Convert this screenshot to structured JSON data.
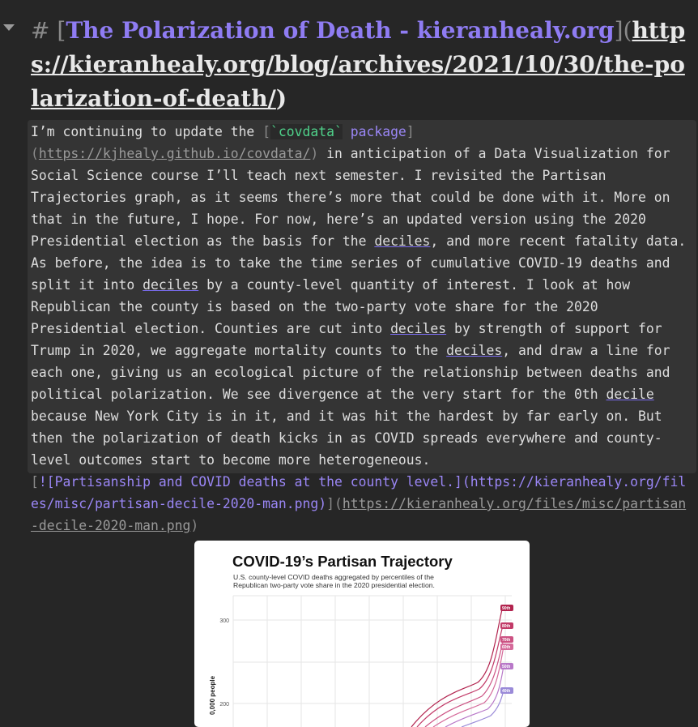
{
  "heading": {
    "segments": [
      {
        "kind": "marker",
        "text": "# "
      },
      {
        "kind": "syntax",
        "text": "["
      },
      {
        "kind": "link",
        "text": "The Polarization of Death - kieranhealy.org"
      },
      {
        "kind": "syntax",
        "text": "]("
      },
      {
        "kind": "url",
        "text": "https://kieranhealy.org/blog/archives/2021/10/30/the-polarization-of-death/"
      },
      {
        "kind": "plain",
        "text": ")"
      }
    ]
  },
  "paragraph": {
    "segments": [
      {
        "kind": "plain",
        "text": "I’m continuing to update the "
      },
      {
        "kind": "syntax",
        "text": "["
      },
      {
        "kind": "code",
        "text": "`covdata`"
      },
      {
        "kind": "link",
        "text": " package"
      },
      {
        "kind": "syntax",
        "text": "]("
      },
      {
        "kind": "url",
        "text": "https://kjhealy.github.io/covdata/"
      },
      {
        "kind": "syntax",
        "text": ")"
      },
      {
        "kind": "plain",
        "text": " in anticipation of a Data Visualization for Social Science course I’ll teach next semester. I revisited the Partisan Trajectories graph, as it seems there’s more that could be done with it. More on that in the future, I hope. For now, here’s an updated version using the 2020 Presidential election as the basis for the "
      },
      {
        "kind": "underline",
        "text": "deciles"
      },
      {
        "kind": "plain",
        "text": ", and more recent fatality data. As before, the idea is to take the time series of cumulative COVID-19 deaths and split it into "
      },
      {
        "kind": "underline",
        "text": "deciles"
      },
      {
        "kind": "plain",
        "text": " by a county-level quantity of interest. I look at how Republican the county is based on the two-party vote share for the 2020 Presidential election. Counties are cut into "
      },
      {
        "kind": "underline",
        "text": "deciles"
      },
      {
        "kind": "plain",
        "text": " by strength of support for Trump in 2020, we aggregate mortality counts to the "
      },
      {
        "kind": "underline",
        "text": "deciles"
      },
      {
        "kind": "plain",
        "text": ", and draw a line for each one, giving us an ecological picture of the relationship between deaths and political polarization. We see divergence at the very start for the 0th "
      },
      {
        "kind": "underline",
        "text": "decile"
      },
      {
        "kind": "plain",
        "text": " because New York City is in it, and it was hit the hardest by far early on. But then the polarization of death kicks in as COVID spreads everywhere and county-level outcomes start to become more heterogeneous."
      }
    ]
  },
  "image_link": {
    "segments": [
      {
        "kind": "syntax",
        "text": "["
      },
      {
        "kind": "link",
        "text": "![Partisanship and COVID deaths at the county level.](https://kieranhealy.org/files/misc/partisan-decile-2020-man.png)"
      },
      {
        "kind": "syntax",
        "text": "]("
      },
      {
        "kind": "url",
        "text": "https://kieranhealy.org/files/misc/partisan-decile-2020-man.png"
      },
      {
        "kind": "syntax",
        "text": ")"
      }
    ]
  },
  "image": {
    "title": "COVID-19’s Partisan Trajectory",
    "subtitle_lines": [
      "U.S. county-level COVID deaths aggregated by percentiles of the",
      "Republican two-party vote share in the 2020 presidential election."
    ],
    "y_axis_label": "0,000 people",
    "y_tick_labels": [
      "300",
      "200"
    ],
    "series_labels": [
      "90th",
      "80th",
      "70th",
      "60th",
      "50th",
      "40th"
    ]
  }
}
